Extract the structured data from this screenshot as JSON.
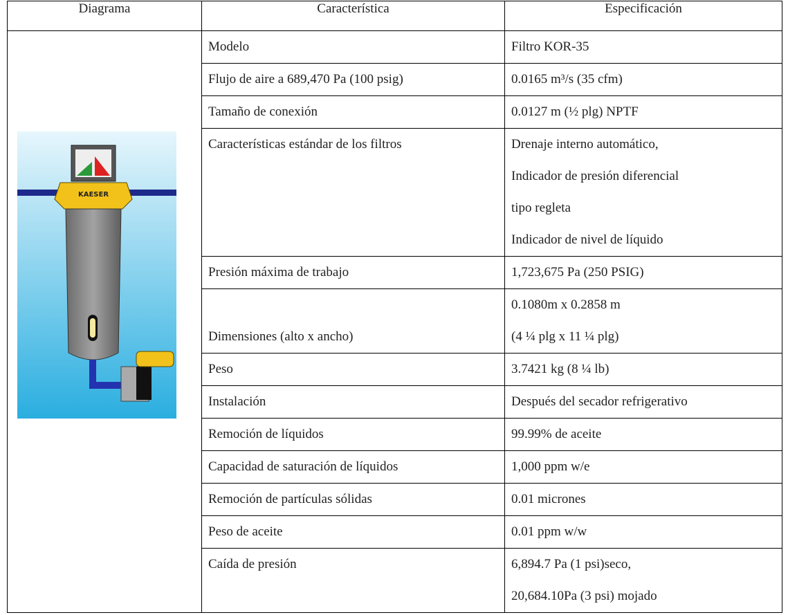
{
  "table": {
    "header": [
      "Diagrama",
      "Característica",
      "Especificación"
    ],
    "rows": [
      {
        "feature": "Modelo",
        "spec": [
          "Filtro KOR-35"
        ]
      },
      {
        "feature": "Flujo de aire a 689,470 Pa (100 psig)",
        "spec": [
          "0.0165 m³/s (35 cfm)"
        ]
      },
      {
        "feature": "Tamaño de conexión",
        "spec": [
          "0.0127 m (½ plg) NPTF"
        ]
      },
      {
        "feature": "Características estándar de los filtros",
        "spec": [
          "Drenaje interno automático,",
          "Indicador de presión diferencial",
          "tipo regleta",
          "Indicador de nivel de líquido"
        ]
      },
      {
        "feature": "Presión máxima de trabajo",
        "spec": [
          "1,723,675 Pa (250 PSIG)"
        ]
      },
      {
        "feature": "Dimensiones (alto x ancho)",
        "spec": [
          "0.1080m x 0.2858 m",
          "(4 ¼ plg x 11 ¼ plg)"
        ]
      },
      {
        "feature": "Peso",
        "spec": [
          "3.7421 kg (8 ¼ lb)"
        ]
      },
      {
        "feature": "Instalación",
        "spec": [
          "Después del secador refrigerativo"
        ]
      },
      {
        "feature": "Remoción de líquidos",
        "spec": [
          "99.99% de aceite"
        ]
      },
      {
        "feature": "Capacidad de saturación de líquidos",
        "spec": [
          "1,000 ppm w/e"
        ]
      },
      {
        "feature": "Remoción de partículas sólidas",
        "spec": [
          "0.01 micrones"
        ]
      },
      {
        "feature": "Peso de aceite",
        "spec": [
          "0.01 ppm w/w"
        ]
      },
      {
        "feature": "Caída de presión",
        "spec": [
          "6,894.7 Pa (1 psi)seco,",
          "20,684.10Pa (3 psi) mojado"
        ]
      }
    ]
  }
}
